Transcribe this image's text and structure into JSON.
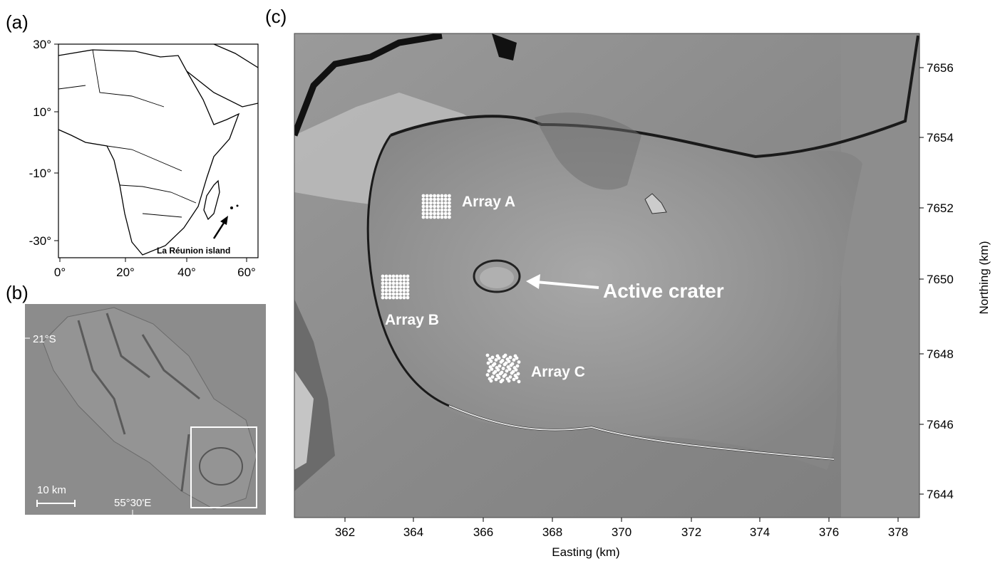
{
  "panels": {
    "a": {
      "label": "(a)",
      "lat_ticks": [
        "30°",
        "10°",
        "-10°",
        "-30°"
      ],
      "lon_ticks": [
        "0°",
        "20°",
        "40°",
        "60°"
      ],
      "annotation": "La Réunion island"
    },
    "b": {
      "label": "(b)",
      "lat_label": "21°S",
      "lon_label": "55°30'E",
      "scale_bar": "10 km"
    },
    "c": {
      "label": "(c)",
      "easting_ticks": [
        362,
        364,
        366,
        368,
        370,
        372,
        374,
        376,
        378
      ],
      "northing_ticks": [
        7656,
        7654,
        7652,
        7650,
        7648,
        7646,
        7644
      ],
      "x_label": "Easting (km)",
      "y_label": "Northing (km)",
      "annotations": [
        "Array A",
        "Array B",
        "Array C",
        "Active crater"
      ]
    }
  }
}
